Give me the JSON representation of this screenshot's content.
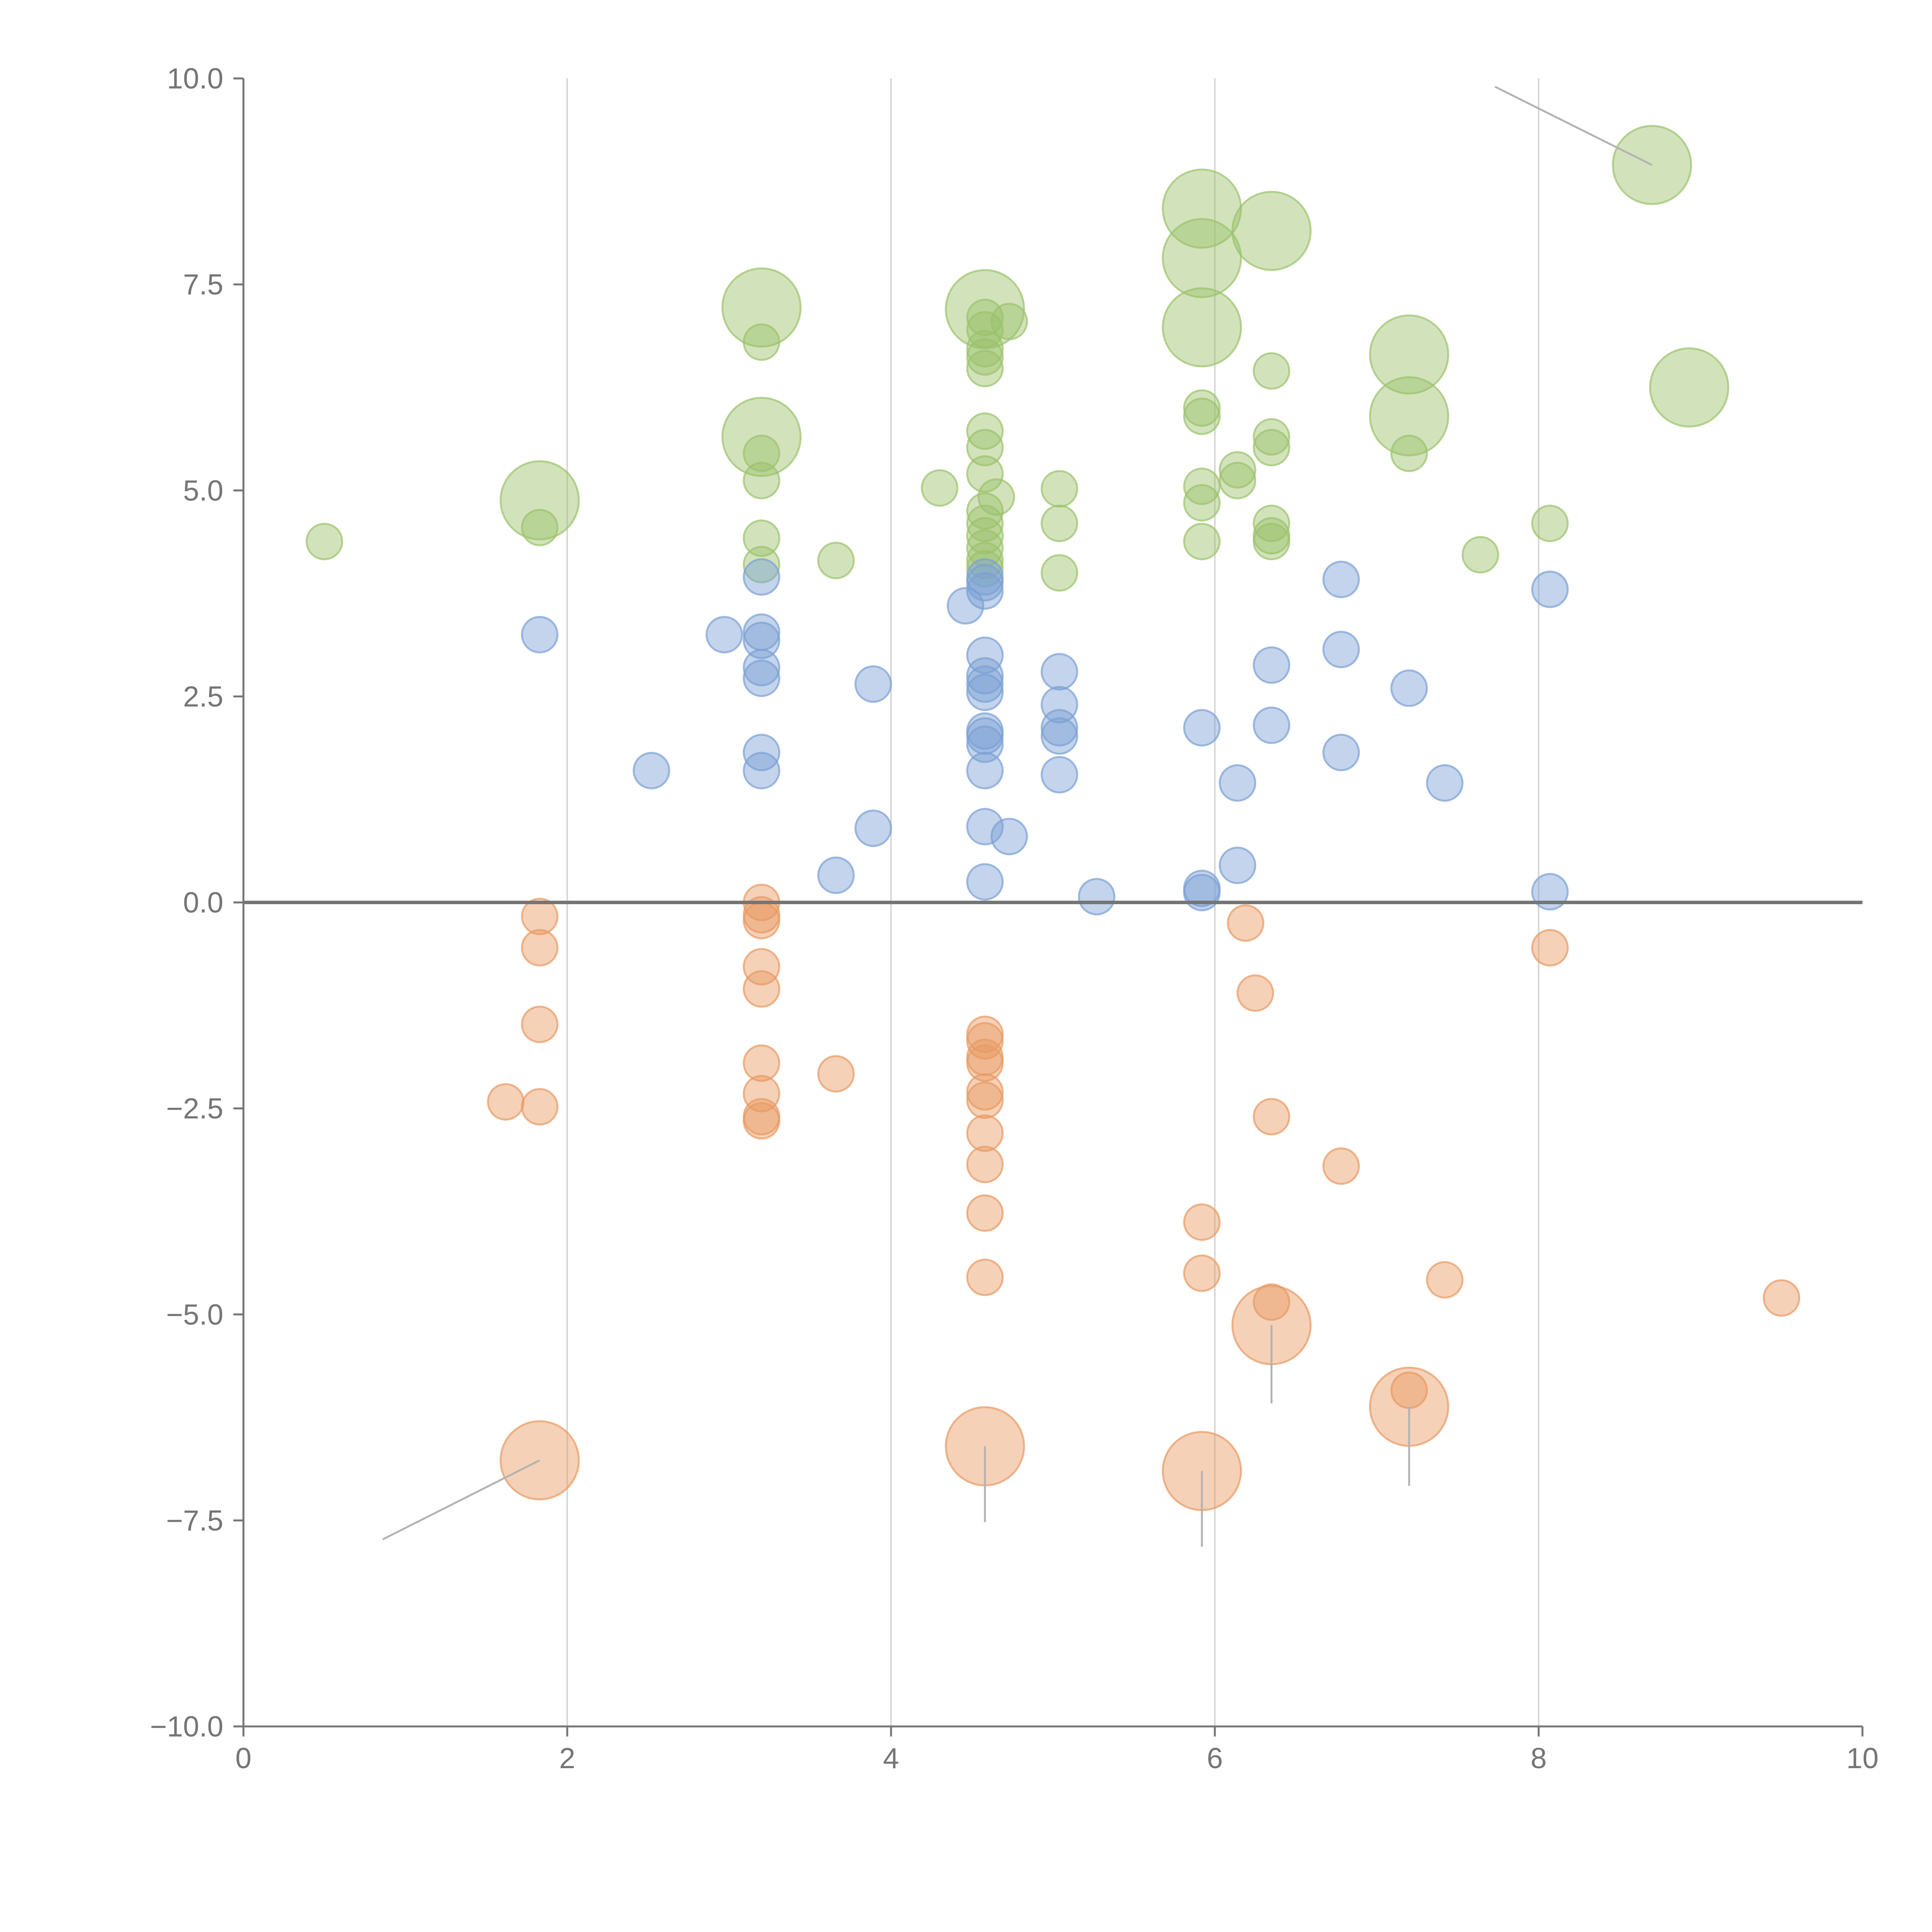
{
  "chart_data": {
    "type": "scatter",
    "title": "",
    "xlabel": "",
    "ylabel": "",
    "xlim": [
      0,
      10
    ],
    "ylim": [
      -10,
      10
    ],
    "x_ticks": [
      "0",
      "2",
      "4",
      "6",
      "8",
      "10"
    ],
    "x_tick_values": [
      0,
      2,
      4,
      6,
      8,
      10
    ],
    "y_ticks": [
      "10.0",
      "7.5",
      "5.0",
      "2.5",
      "0.0",
      "−2.5",
      "−5.0",
      "−7.5",
      "−10.0"
    ],
    "y_tick_values": [
      10,
      7.5,
      5,
      2.5,
      0,
      -2.5,
      -5,
      -7.5,
      -10
    ],
    "vertical_gridlines_at": [
      2,
      4,
      6,
      8
    ],
    "reference_line_y": 0,
    "grid": true,
    "legend": "none",
    "series": [
      {
        "name": "green",
        "color": "#9bc26b",
        "points": [
          {
            "x": 0.5,
            "y": 4.38,
            "r": 1
          },
          {
            "x": 1.83,
            "y": 4.55,
            "r": 1
          },
          {
            "x": 1.83,
            "y": 4.88,
            "r": 2.2
          },
          {
            "x": 3.2,
            "y": 7.22,
            "r": 2.2
          },
          {
            "x": 3.2,
            "y": 6.8,
            "r": 1
          },
          {
            "x": 3.2,
            "y": 5.65,
            "r": 2.2
          },
          {
            "x": 3.2,
            "y": 5.45,
            "r": 1
          },
          {
            "x": 3.2,
            "y": 5.12,
            "r": 1
          },
          {
            "x": 3.2,
            "y": 4.42,
            "r": 1
          },
          {
            "x": 3.2,
            "y": 4.1,
            "r": 1
          },
          {
            "x": 3.66,
            "y": 4.15,
            "r": 1
          },
          {
            "x": 4.3,
            "y": 5.03,
            "r": 1
          },
          {
            "x": 4.58,
            "y": 7.2,
            "r": 2.2
          },
          {
            "x": 4.58,
            "y": 7.1,
            "r": 1
          },
          {
            "x": 4.73,
            "y": 7.05,
            "r": 1
          },
          {
            "x": 4.58,
            "y": 6.95,
            "r": 1
          },
          {
            "x": 4.58,
            "y": 6.72,
            "r": 1
          },
          {
            "x": 4.58,
            "y": 6.62,
            "r": 1
          },
          {
            "x": 4.58,
            "y": 6.48,
            "r": 1
          },
          {
            "x": 4.58,
            "y": 5.72,
            "r": 1
          },
          {
            "x": 4.58,
            "y": 5.52,
            "r": 1
          },
          {
            "x": 4.58,
            "y": 5.2,
            "r": 1
          },
          {
            "x": 4.65,
            "y": 4.92,
            "r": 1
          },
          {
            "x": 4.58,
            "y": 4.75,
            "r": 1
          },
          {
            "x": 4.58,
            "y": 4.6,
            "r": 1
          },
          {
            "x": 4.58,
            "y": 4.45,
            "r": 1
          },
          {
            "x": 4.58,
            "y": 4.3,
            "r": 1
          },
          {
            "x": 4.58,
            "y": 4.15,
            "r": 1
          },
          {
            "x": 4.58,
            "y": 4.05,
            "r": 1
          },
          {
            "x": 5.04,
            "y": 5.02,
            "r": 1
          },
          {
            "x": 5.04,
            "y": 4.6,
            "r": 1
          },
          {
            "x": 5.04,
            "y": 4.0,
            "r": 1
          },
          {
            "x": 5.92,
            "y": 8.42,
            "r": 2.2
          },
          {
            "x": 5.92,
            "y": 7.82,
            "r": 2.2
          },
          {
            "x": 5.92,
            "y": 6.98,
            "r": 2.2
          },
          {
            "x": 5.92,
            "y": 6.0,
            "r": 1
          },
          {
            "x": 5.92,
            "y": 5.9,
            "r": 1
          },
          {
            "x": 5.92,
            "y": 5.05,
            "r": 1
          },
          {
            "x": 5.92,
            "y": 4.85,
            "r": 1
          },
          {
            "x": 5.92,
            "y": 4.38,
            "r": 1
          },
          {
            "x": 6.35,
            "y": 8.15,
            "r": 2.2
          },
          {
            "x": 6.35,
            "y": 6.45,
            "r": 1
          },
          {
            "x": 6.14,
            "y": 5.25,
            "r": 1
          },
          {
            "x": 6.14,
            "y": 5.12,
            "r": 1
          },
          {
            "x": 6.35,
            "y": 5.65,
            "r": 1
          },
          {
            "x": 6.35,
            "y": 5.52,
            "r": 1
          },
          {
            "x": 6.35,
            "y": 4.6,
            "r": 1
          },
          {
            "x": 6.35,
            "y": 4.45,
            "r": 1
          },
          {
            "x": 6.35,
            "y": 4.38,
            "r": 1
          },
          {
            "x": 7.2,
            "y": 6.65,
            "r": 2.2
          },
          {
            "x": 7.2,
            "y": 5.9,
            "r": 2.2
          },
          {
            "x": 7.2,
            "y": 5.45,
            "r": 1
          },
          {
            "x": 7.64,
            "y": 4.22,
            "r": 1
          },
          {
            "x": 8.07,
            "y": 4.6,
            "r": 1
          },
          {
            "x": 8.7,
            "y": 8.95,
            "r": 2.2
          },
          {
            "x": 8.93,
            "y": 6.25,
            "r": 2.2
          }
        ]
      },
      {
        "name": "blue",
        "color": "#7a9fd4",
        "points": [
          {
            "x": 1.83,
            "y": 3.25,
            "r": 1
          },
          {
            "x": 2.52,
            "y": 1.6,
            "r": 1
          },
          {
            "x": 2.97,
            "y": 3.25,
            "r": 1
          },
          {
            "x": 3.2,
            "y": 3.95,
            "r": 1
          },
          {
            "x": 3.2,
            "y": 3.28,
            "r": 1
          },
          {
            "x": 3.2,
            "y": 3.18,
            "r": 1
          },
          {
            "x": 3.2,
            "y": 2.85,
            "r": 1
          },
          {
            "x": 3.2,
            "y": 2.72,
            "r": 1
          },
          {
            "x": 3.2,
            "y": 1.82,
            "r": 1
          },
          {
            "x": 3.2,
            "y": 1.6,
            "r": 1
          },
          {
            "x": 3.89,
            "y": 2.65,
            "r": 1
          },
          {
            "x": 3.89,
            "y": 0.9,
            "r": 1
          },
          {
            "x": 3.66,
            "y": 0.33,
            "r": 1
          },
          {
            "x": 4.46,
            "y": 3.6,
            "r": 1
          },
          {
            "x": 4.58,
            "y": 3.95,
            "r": 1
          },
          {
            "x": 4.58,
            "y": 3.88,
            "r": 1
          },
          {
            "x": 4.58,
            "y": 3.78,
            "r": 1
          },
          {
            "x": 4.58,
            "y": 3.0,
            "r": 1
          },
          {
            "x": 4.58,
            "y": 2.75,
            "r": 1
          },
          {
            "x": 4.58,
            "y": 2.65,
            "r": 1
          },
          {
            "x": 4.58,
            "y": 2.55,
            "r": 1
          },
          {
            "x": 4.58,
            "y": 2.08,
            "r": 1
          },
          {
            "x": 4.58,
            "y": 2.02,
            "r": 1
          },
          {
            "x": 4.58,
            "y": 1.92,
            "r": 1
          },
          {
            "x": 4.58,
            "y": 1.6,
            "r": 1
          },
          {
            "x": 4.58,
            "y": 0.92,
            "r": 1
          },
          {
            "x": 4.73,
            "y": 0.8,
            "r": 1
          },
          {
            "x": 4.58,
            "y": 0.25,
            "r": 1
          },
          {
            "x": 5.04,
            "y": 2.8,
            "r": 1
          },
          {
            "x": 5.04,
            "y": 2.4,
            "r": 1
          },
          {
            "x": 5.04,
            "y": 2.12,
            "r": 1
          },
          {
            "x": 5.04,
            "y": 2.02,
            "r": 1
          },
          {
            "x": 5.04,
            "y": 1.55,
            "r": 1
          },
          {
            "x": 5.27,
            "y": 0.07,
            "r": 1
          },
          {
            "x": 5.92,
            "y": 2.12,
            "r": 1
          },
          {
            "x": 5.92,
            "y": 0.17,
            "r": 1
          },
          {
            "x": 5.92,
            "y": 0.12,
            "r": 1
          },
          {
            "x": 6.14,
            "y": 1.45,
            "r": 1
          },
          {
            "x": 6.14,
            "y": 0.45,
            "r": 1
          },
          {
            "x": 6.35,
            "y": 2.88,
            "r": 1
          },
          {
            "x": 6.35,
            "y": 2.15,
            "r": 1
          },
          {
            "x": 6.78,
            "y": 3.92,
            "r": 1
          },
          {
            "x": 6.78,
            "y": 3.07,
            "r": 1
          },
          {
            "x": 6.78,
            "y": 1.82,
            "r": 1
          },
          {
            "x": 7.2,
            "y": 2.6,
            "r": 1
          },
          {
            "x": 7.42,
            "y": 1.45,
            "r": 1
          },
          {
            "x": 8.07,
            "y": 3.8,
            "r": 1
          },
          {
            "x": 8.07,
            "y": 0.13,
            "r": 1
          }
        ]
      },
      {
        "name": "orange",
        "color": "#e89a62",
        "points": [
          {
            "x": 1.83,
            "y": -0.17,
            "r": 1
          },
          {
            "x": 1.83,
            "y": -0.55,
            "r": 1
          },
          {
            "x": 1.83,
            "y": -1.48,
            "r": 1
          },
          {
            "x": 1.62,
            "y": -2.42,
            "r": 1
          },
          {
            "x": 1.83,
            "y": -2.48,
            "r": 1
          },
          {
            "x": 1.83,
            "y": -6.77,
            "r": 2.2
          },
          {
            "x": 3.2,
            "y": 0.0,
            "r": 1
          },
          {
            "x": 3.2,
            "y": -0.15,
            "r": 1
          },
          {
            "x": 3.2,
            "y": -0.22,
            "r": 1
          },
          {
            "x": 3.2,
            "y": -0.78,
            "r": 1
          },
          {
            "x": 3.2,
            "y": -1.05,
            "r": 1
          },
          {
            "x": 3.2,
            "y": -1.95,
            "r": 1
          },
          {
            "x": 3.2,
            "y": -2.32,
            "r": 1
          },
          {
            "x": 3.2,
            "y": -2.6,
            "r": 1
          },
          {
            "x": 3.2,
            "y": -2.65,
            "r": 1
          },
          {
            "x": 3.66,
            "y": -2.08,
            "r": 1
          },
          {
            "x": 4.58,
            "y": -1.6,
            "r": 1
          },
          {
            "x": 4.58,
            "y": -1.68,
            "r": 1
          },
          {
            "x": 4.58,
            "y": -1.88,
            "r": 1
          },
          {
            "x": 4.58,
            "y": -1.95,
            "r": 1
          },
          {
            "x": 4.58,
            "y": -2.3,
            "r": 1
          },
          {
            "x": 4.58,
            "y": -2.4,
            "r": 1
          },
          {
            "x": 4.58,
            "y": -2.8,
            "r": 1
          },
          {
            "x": 4.58,
            "y": -3.18,
            "r": 1
          },
          {
            "x": 4.58,
            "y": -3.77,
            "r": 1
          },
          {
            "x": 4.58,
            "y": -4.55,
            "r": 1
          },
          {
            "x": 4.58,
            "y": -6.6,
            "r": 2.2
          },
          {
            "x": 5.92,
            "y": -3.88,
            "r": 1
          },
          {
            "x": 5.92,
            "y": -4.5,
            "r": 1
          },
          {
            "x": 5.92,
            "y": -6.9,
            "r": 2.2
          },
          {
            "x": 6.19,
            "y": -0.25,
            "r": 1
          },
          {
            "x": 6.25,
            "y": -1.1,
            "r": 1
          },
          {
            "x": 6.35,
            "y": -2.6,
            "r": 1
          },
          {
            "x": 6.35,
            "y": -4.85,
            "r": 1
          },
          {
            "x": 6.35,
            "y": -5.13,
            "r": 2.2
          },
          {
            "x": 6.78,
            "y": -3.2,
            "r": 1
          },
          {
            "x": 7.2,
            "y": -5.92,
            "r": 1
          },
          {
            "x": 7.2,
            "y": -6.12,
            "r": 2.2
          },
          {
            "x": 7.42,
            "y": -4.58,
            "r": 1
          },
          {
            "x": 8.07,
            "y": -0.55,
            "r": 1
          },
          {
            "x": 9.5,
            "y": -4.8,
            "r": 1
          }
        ]
      }
    ],
    "annotation_leaders": [
      {
        "from": [
          8.7,
          8.95
        ],
        "to": [
          7.73,
          9.9
        ]
      },
      {
        "from": [
          1.83,
          -6.77
        ],
        "to": [
          0.86,
          -7.73
        ]
      },
      {
        "from": [
          4.58,
          -6.6
        ],
        "to": [
          4.58,
          -7.52
        ]
      },
      {
        "from": [
          5.92,
          -6.9
        ],
        "to": [
          5.92,
          -7.82
        ]
      },
      {
        "from": [
          6.35,
          -5.13
        ],
        "to": [
          6.35,
          -6.08
        ]
      },
      {
        "from": [
          7.2,
          -6.12
        ],
        "to": [
          7.2,
          -7.08
        ]
      }
    ]
  }
}
